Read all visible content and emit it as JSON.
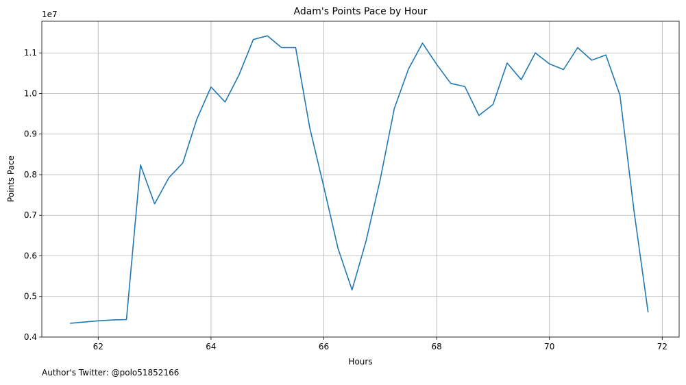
{
  "footer_text": "Author's Twitter: @polo51852166",
  "chart_data": {
    "type": "line",
    "title": "Adam's Points Pace by Hour",
    "xlabel": "Hours",
    "ylabel": "Points Pace",
    "y_offset_label": "1e7",
    "xlim": [
      61.0,
      72.3
    ],
    "ylim": [
      4.0,
      11.78
    ],
    "grid": true,
    "line_color": "#1f77b4",
    "x_ticks": [
      62,
      64,
      66,
      68,
      70,
      72
    ],
    "x_tick_labels": [
      "62",
      "64",
      "66",
      "68",
      "70",
      "72"
    ],
    "y_ticks": [
      4.0,
      5.0,
      6.0,
      7.0,
      8.0,
      9.0,
      10.0,
      11.0
    ],
    "y_tick_labels": [
      "0.4",
      "0.5",
      "0.6",
      "0.7",
      "0.8",
      "0.9",
      "1.0",
      "1.1"
    ],
    "series": [
      {
        "x": [
          61.5,
          61.75,
          62.0,
          62.25,
          62.5,
          62.75,
          63.0,
          63.25,
          63.5,
          63.75,
          64.0,
          64.25,
          64.5,
          64.75,
          65.0,
          65.25,
          65.5,
          65.75,
          66.0,
          66.25,
          66.5,
          66.75,
          67.0,
          67.25,
          67.5,
          67.75,
          68.0,
          68.25,
          68.5,
          68.75,
          69.0,
          69.25,
          69.5,
          69.75,
          70.0,
          70.25,
          70.5,
          70.75,
          71.0,
          71.25,
          71.5,
          71.75
        ],
        "values": [
          4.34,
          4.37,
          4.4,
          4.42,
          4.43,
          8.24,
          7.28,
          7.92,
          8.29,
          9.37,
          10.16,
          9.79,
          10.47,
          11.33,
          11.42,
          11.13,
          11.13,
          9.16,
          7.7,
          6.19,
          5.16,
          6.37,
          7.88,
          9.63,
          10.6,
          11.24,
          10.72,
          10.25,
          10.17,
          9.46,
          9.73,
          10.75,
          10.34,
          11.0,
          10.73,
          10.59,
          11.13,
          10.82,
          10.95,
          9.96,
          7.1,
          4.61
        ]
      }
    ]
  }
}
